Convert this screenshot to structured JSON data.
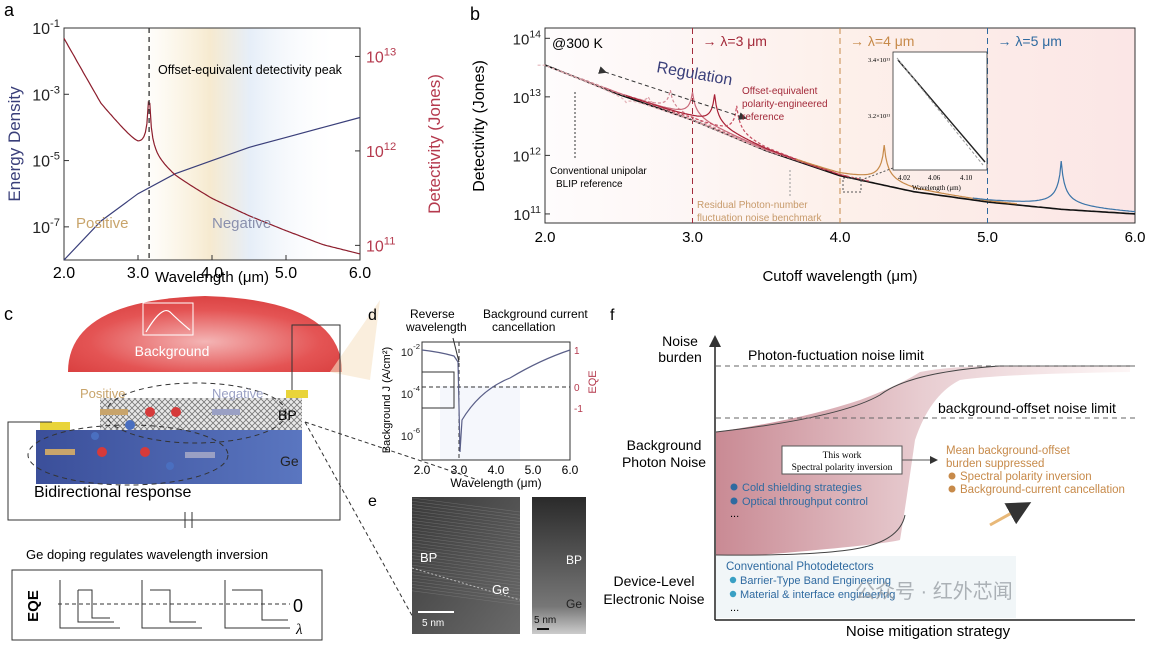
{
  "panels": {
    "a": "a",
    "b": "b",
    "c": "c",
    "d": "d",
    "e": "e",
    "f": "f"
  },
  "colors": {
    "navy": "#3a3f7a",
    "crimson": "#b53a4e",
    "gold": "#c8a46b",
    "blue": "#4d7ba6",
    "orange": "#c78a4a",
    "darkred": "#8c1d2c"
  },
  "chart_data": [
    {
      "id": "a",
      "type": "line",
      "xlabel": "Wavelength (μm)",
      "ylabel_left": "Energy Density",
      "ylabel_right": "Detectivity (Jones)",
      "xlim": [
        2.0,
        6.0
      ],
      "ylim_left": [
        1e-08,
        0.1
      ],
      "ylim_right": [
        70000000000.0,
        20000000000000.0
      ],
      "xticks": [
        "2.0",
        "3.0",
        "4.0",
        "5.0",
        "6.0"
      ],
      "yticks_left": [
        {
          "b": "10",
          "e": "-1",
          "v": 0.1
        },
        {
          "b": "10",
          "e": "-3",
          "v": 0.001
        },
        {
          "b": "10",
          "e": "-5",
          "v": 1e-05
        },
        {
          "b": "10",
          "e": "-7",
          "v": 1e-07
        }
      ],
      "yticks_right": [
        {
          "b": "10",
          "e": "13",
          "v": 10000000000000.0
        },
        {
          "b": "10",
          "e": "12",
          "v": 1000000000000.0
        },
        {
          "b": "10",
          "e": "11",
          "v": 100000000000.0
        }
      ],
      "annotation": "Offset-equivalent detectivity peak",
      "region_labels": {
        "positive": "Positive",
        "negative": "Negative"
      },
      "peak_x": 3.15,
      "series": [
        {
          "axis": "left",
          "x": [
            2.0,
            2.5,
            3.0,
            3.5,
            4.0,
            4.5,
            5.0,
            5.5,
            6.0
          ],
          "y": [
            1e-08,
            1.5e-07,
            1e-06,
            4e-06,
            1e-05,
            2.5e-05,
            5e-05,
            0.0001,
            0.0002
          ]
        },
        {
          "axis": "right",
          "x": [
            2.0,
            2.5,
            3.0,
            3.5,
            4.0,
            4.5,
            5.0,
            5.5,
            6.0
          ],
          "y": [
            15000000000000.0,
            3000000000000.0,
            1000000000000.0,
            500000000000.0,
            300000000000.0,
            200000000000.0,
            140000000000.0,
            100000000000.0,
            80000000000.0
          ]
        }
      ]
    },
    {
      "id": "b",
      "type": "line",
      "xlabel": "Cutoff  wavelength (μm)",
      "ylabel": "Detectivity (Jones)",
      "xlim": [
        2.0,
        6.0
      ],
      "ylim": [
        70000000000.0,
        150000000000000.0
      ],
      "xticks": [
        "2.0",
        "3.0",
        "4.0",
        "5.0",
        "6.0"
      ],
      "yticks": [
        {
          "b": "10",
          "e": "14",
          "v": 100000000000000.0
        },
        {
          "b": "10",
          "e": "13",
          "v": 10000000000000.0
        },
        {
          "b": "10",
          "e": "12",
          "v": 1000000000000.0
        },
        {
          "b": "10",
          "e": "11",
          "v": 100000000000.0
        }
      ],
      "temp_label": "@300 K",
      "lambda_labels": [
        {
          "text": "λ=3 μm",
          "x": 3.0,
          "color": "#a32a3a"
        },
        {
          "text": "λ=4 μm",
          "x": 4.0,
          "color": "#c78a4a"
        },
        {
          "text": "λ=5 μm",
          "x": 5.0,
          "color": "#2f6aa0"
        }
      ],
      "arrow_glyph": "→",
      "regulation_label": "Regulation",
      "notes": {
        "offset": [
          "Offset-equivalent",
          "polarity-engineered",
          "reference"
        ],
        "blip": [
          "Conventional unipolar",
          "BLIP reference"
        ],
        "residual": [
          "Residual Photon-number",
          "fluctuation noise benchmark"
        ]
      },
      "inset": {
        "xticks": [
          "4.02",
          "4.06",
          "4.10"
        ],
        "xlabel": "Wavelength (μm)",
        "yticks": [
          "3.4×10¹¹",
          "3.2×10¹¹"
        ]
      },
      "baseline": {
        "x": [
          2.0,
          2.5,
          3.0,
          3.5,
          4.0,
          4.5,
          5.0,
          5.5,
          6.0
        ],
        "y": [
          35000000000000.0,
          11000000000000.0,
          4000000000000.0,
          1200000000000.0,
          450000000000.0,
          240000000000.0,
          160000000000.0,
          120000000000.0,
          100000000000.0
        ]
      },
      "peaks": [
        {
          "x": 2.55,
          "y": 8000000000000.0
        },
        {
          "x": 2.7,
          "y": 10000000000000.0
        },
        {
          "x": 2.85,
          "y": 13000000000000.0
        },
        {
          "x": 3.0,
          "y": 12000000000000.0
        },
        {
          "x": 3.15,
          "y": 11000000000000.0
        },
        {
          "x": 3.3,
          "y": 7000000000000.0
        },
        {
          "x": 4.3,
          "y": 1500000000000.0
        },
        {
          "x": 5.5,
          "y": 800000000000.0
        }
      ]
    },
    {
      "id": "d",
      "type": "line",
      "xlabel": "Wavelength (μm)",
      "ylabel": "Background J (A/cm²)",
      "ylabel_right": "EQE",
      "xlim": [
        2.0,
        6.0
      ],
      "xticks": [
        "2.0",
        "3.0",
        "4.0",
        "5.0",
        "6.0"
      ],
      "yticks": [
        {
          "b": "10",
          "e": "-2"
        },
        {
          "b": "10",
          "e": "-4"
        },
        {
          "b": "10",
          "e": "-6"
        }
      ],
      "yticks_right": [
        "1",
        "0",
        "-1"
      ],
      "labels": {
        "reverse": [
          "Reverse",
          "wavelength"
        ],
        "cancel": [
          "Background current",
          "cancellation"
        ]
      }
    }
  ],
  "panel_c": {
    "background": "Background",
    "positive": "Positive",
    "negative": "Negative",
    "bp": "BP",
    "ge": "Ge",
    "bidirectional": "Bidirectional response",
    "doping": "Ge doping regulates wavelength inversion",
    "eqe": "EQE",
    "zero": "0",
    "lambda": "λ"
  },
  "panel_e": {
    "bp1": "BP",
    "ge1": "Ge",
    "scale1": "5 nm",
    "bp2": "BP",
    "ge2": "Ge",
    "scale2": "5 nm"
  },
  "panel_f": {
    "ylabel_top": [
      "Noise",
      "burden"
    ],
    "photon_limit": "Photon-fuctuation noise limit",
    "offset_limit": "background-offset noise limit",
    "bg_noise": [
      "Background",
      "Photon Noise"
    ],
    "device_noise": [
      "Device-Level",
      "Electronic Noise"
    ],
    "this_work": [
      "This work",
      "Spectral polarity inversion"
    ],
    "mean_offset": [
      "Mean background-offset",
      "burden suppressed"
    ],
    "orange_items": [
      "Spectral polarity inversion",
      "Background-current cancellation"
    ],
    "blue_items": [
      "Cold shielding strategies",
      "Optical throughput control"
    ],
    "ellipsis": "...",
    "conv_title": "Conventional Photodetectors",
    "conv_items": [
      "Barrier-Type Band Engineering",
      "Material & interface engineering"
    ],
    "xlabel": "Noise mitigation strategy",
    "watermark": "公众号 · 红外芯闻"
  }
}
